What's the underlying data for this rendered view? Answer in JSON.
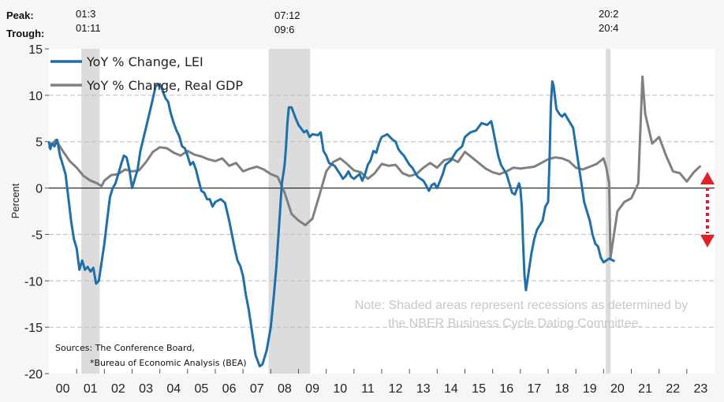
{
  "header": {
    "peak_label": "Peak:",
    "trough_label": "Trough:",
    "recession_dates": [
      {
        "peak": "01:3",
        "trough": "01:11"
      },
      {
        "peak": "07:12",
        "trough": "09:6"
      },
      {
        "peak": "20:2",
        "trough": "20:4"
      }
    ]
  },
  "chart_data": {
    "type": "line",
    "title": "",
    "xlabel": "",
    "ylabel": "Percent",
    "ylim": [
      -20,
      15
    ],
    "xlim": [
      2000,
      2024
    ],
    "yticks": [
      15,
      10,
      5,
      0,
      -5,
      -10,
      -15,
      -20
    ],
    "xtick_labels": [
      "00",
      "01",
      "02",
      "03",
      "04",
      "05",
      "06",
      "07",
      "08",
      "09",
      "10",
      "11",
      "12",
      "13",
      "14",
      "15",
      "16",
      "17",
      "18",
      "19",
      "20",
      "21",
      "22",
      "23"
    ],
    "grid": true,
    "legend_position": "top-left",
    "colors": {
      "lei": "#1f6fa8",
      "gdp": "#808080",
      "recession": "#dcdcdc",
      "arrow": "#e0202a"
    },
    "recessions": [
      {
        "start": 2001.17,
        "end": 2001.83
      },
      {
        "start": 2007.92,
        "end": 2009.42
      },
      {
        "start": 2020.08,
        "end": 2020.25
      }
    ],
    "series": [
      {
        "name": "YoY % Change, LEI",
        "points": [
          [
            2000.0,
            5.0
          ],
          [
            2000.05,
            4.2
          ],
          [
            2000.1,
            4.8
          ],
          [
            2000.2,
            4.5
          ],
          [
            2000.3,
            5.2
          ],
          [
            2000.4,
            3.5
          ],
          [
            2000.5,
            2.5
          ],
          [
            2000.6,
            1.5
          ],
          [
            2000.7,
            -1.0
          ],
          [
            2000.8,
            -3.5
          ],
          [
            2000.9,
            -5.5
          ],
          [
            2001.0,
            -6.5
          ],
          [
            2001.1,
            -8.8
          ],
          [
            2001.2,
            -7.8
          ],
          [
            2001.3,
            -8.8
          ],
          [
            2001.4,
            -8.5
          ],
          [
            2001.5,
            -9.0
          ],
          [
            2001.6,
            -8.6
          ],
          [
            2001.7,
            -10.3
          ],
          [
            2001.8,
            -10.0
          ],
          [
            2001.9,
            -8.0
          ],
          [
            2002.0,
            -6.0
          ],
          [
            2002.1,
            -3.5
          ],
          [
            2002.2,
            -1.0
          ],
          [
            2002.3,
            0.0
          ],
          [
            2002.4,
            0.5
          ],
          [
            2002.5,
            1.5
          ],
          [
            2002.6,
            2.5
          ],
          [
            2002.7,
            3.5
          ],
          [
            2002.8,
            3.3
          ],
          [
            2002.9,
            2.0
          ],
          [
            2003.0,
            0.0
          ],
          [
            2003.1,
            1.0
          ],
          [
            2003.2,
            2.0
          ],
          [
            2003.3,
            4.0
          ],
          [
            2003.5,
            6.5
          ],
          [
            2003.7,
            9.0
          ],
          [
            2003.85,
            11.0
          ],
          [
            2004.0,
            11.2
          ],
          [
            2004.1,
            10.5
          ],
          [
            2004.2,
            9.7
          ],
          [
            2004.3,
            9.3
          ],
          [
            2004.4,
            8.0
          ],
          [
            2004.5,
            7.0
          ],
          [
            2004.6,
            6.2
          ],
          [
            2004.7,
            5.6
          ],
          [
            2004.8,
            4.5
          ],
          [
            2004.9,
            4.3
          ],
          [
            2005.0,
            3.5
          ],
          [
            2005.1,
            2.5
          ],
          [
            2005.2,
            2.8
          ],
          [
            2005.3,
            2.0
          ],
          [
            2005.4,
            0.8
          ],
          [
            2005.5,
            -0.3
          ],
          [
            2005.6,
            -0.5
          ],
          [
            2005.7,
            -1.2
          ],
          [
            2005.8,
            -1.2
          ],
          [
            2005.9,
            -2.0
          ],
          [
            2006.0,
            -1.5
          ],
          [
            2006.2,
            -1.2
          ],
          [
            2006.35,
            -1.6
          ],
          [
            2006.5,
            -3.5
          ],
          [
            2006.6,
            -5.0
          ],
          [
            2006.7,
            -6.5
          ],
          [
            2006.8,
            -7.8
          ],
          [
            2006.9,
            -8.4
          ],
          [
            2007.0,
            -9.5
          ],
          [
            2007.1,
            -11.5
          ],
          [
            2007.2,
            -13.0
          ],
          [
            2007.3,
            -15.0
          ],
          [
            2007.45,
            -18.0
          ],
          [
            2007.6,
            -19.2
          ],
          [
            2007.7,
            -19.0
          ],
          [
            2007.85,
            -17.5
          ],
          [
            2008.0,
            -15.0
          ],
          [
            2008.1,
            -12.0
          ],
          [
            2008.2,
            -8.5
          ],
          [
            2008.3,
            -4.0
          ],
          [
            2008.4,
            0.5
          ],
          [
            2008.5,
            2.5
          ],
          [
            2008.55,
            4.5
          ],
          [
            2008.6,
            7.0
          ],
          [
            2008.65,
            8.7
          ],
          [
            2008.75,
            8.7
          ],
          [
            2008.9,
            7.5
          ],
          [
            2009.0,
            6.8
          ],
          [
            2009.2,
            6.0
          ],
          [
            2009.3,
            6.2
          ],
          [
            2009.4,
            5.5
          ],
          [
            2009.5,
            5.8
          ],
          [
            2009.7,
            5.7
          ],
          [
            2009.8,
            6.0
          ],
          [
            2009.9,
            4.0
          ],
          [
            2010.0,
            3.5
          ],
          [
            2010.1,
            2.7
          ],
          [
            2010.3,
            2.4
          ],
          [
            2010.5,
            1.5
          ],
          [
            2010.6,
            1.0
          ],
          [
            2010.7,
            1.3
          ],
          [
            2010.8,
            1.8
          ],
          [
            2010.9,
            1.2
          ],
          [
            2011.0,
            1.0
          ],
          [
            2011.2,
            1.5
          ],
          [
            2011.3,
            0.8
          ],
          [
            2011.4,
            1.5
          ],
          [
            2011.5,
            2.5
          ],
          [
            2011.6,
            3.0
          ],
          [
            2011.7,
            4.0
          ],
          [
            2011.8,
            3.8
          ],
          [
            2011.9,
            4.8
          ],
          [
            2012.0,
            5.5
          ],
          [
            2012.2,
            5.8
          ],
          [
            2012.4,
            5.2
          ],
          [
            2012.5,
            5.0
          ],
          [
            2012.6,
            4.2
          ],
          [
            2012.7,
            3.8
          ],
          [
            2012.8,
            3.5
          ],
          [
            2012.9,
            3.0
          ],
          [
            2013.0,
            2.5
          ],
          [
            2013.1,
            2.2
          ],
          [
            2013.2,
            1.7
          ],
          [
            2013.3,
            1.2
          ],
          [
            2013.4,
            1.0
          ],
          [
            2013.5,
            0.8
          ],
          [
            2013.6,
            0.3
          ],
          [
            2013.7,
            -0.3
          ],
          [
            2013.8,
            0.3
          ],
          [
            2013.9,
            0.5
          ],
          [
            2014.0,
            0.0
          ],
          [
            2014.2,
            1.5
          ],
          [
            2014.3,
            2.5
          ],
          [
            2014.5,
            3.0
          ],
          [
            2014.6,
            3.5
          ],
          [
            2014.7,
            4.0
          ],
          [
            2014.9,
            4.5
          ],
          [
            2015.0,
            5.5
          ],
          [
            2015.2,
            6.0
          ],
          [
            2015.4,
            6.2
          ],
          [
            2015.6,
            7.0
          ],
          [
            2015.8,
            6.8
          ],
          [
            2015.95,
            7.2
          ],
          [
            2016.0,
            6.5
          ],
          [
            2016.1,
            5.0
          ],
          [
            2016.2,
            3.5
          ],
          [
            2016.3,
            2.5
          ],
          [
            2016.5,
            1.5
          ],
          [
            2016.6,
            0.5
          ],
          [
            2016.7,
            -0.5
          ],
          [
            2016.8,
            -0.7
          ],
          [
            2016.95,
            0.5
          ],
          [
            2017.0,
            0.0
          ],
          [
            2017.05,
            -2.0
          ],
          [
            2017.1,
            -6.0
          ],
          [
            2017.15,
            -9.5
          ],
          [
            2017.2,
            -11.0
          ],
          [
            2017.3,
            -9.0
          ],
          [
            2017.4,
            -7.0
          ],
          [
            2017.5,
            -5.5
          ],
          [
            2017.6,
            -4.5
          ],
          [
            2017.7,
            -4.0
          ],
          [
            2017.8,
            -3.5
          ],
          [
            2017.9,
            -2.0
          ],
          [
            2018.0,
            -1.5
          ],
          [
            2018.05,
            3.0
          ],
          [
            2018.1,
            9.0
          ],
          [
            2018.15,
            11.5
          ],
          [
            2018.2,
            11.0
          ],
          [
            2018.3,
            8.5
          ],
          [
            2018.4,
            8.0
          ],
          [
            2018.5,
            7.7
          ],
          [
            2018.6,
            8.0
          ],
          [
            2018.7,
            7.5
          ],
          [
            2018.8,
            7.0
          ],
          [
            2018.9,
            6.5
          ],
          [
            2019.0,
            4.5
          ],
          [
            2019.1,
            2.5
          ],
          [
            2019.2,
            0.5
          ],
          [
            2019.3,
            -1.5
          ],
          [
            2019.4,
            -2.5
          ],
          [
            2019.5,
            -3.5
          ],
          [
            2019.6,
            -5.0
          ],
          [
            2019.7,
            -6.0
          ],
          [
            2019.8,
            -6.3
          ],
          [
            2019.9,
            -7.5
          ],
          [
            2020.0,
            -8.0
          ],
          [
            2020.2,
            -7.6
          ],
          [
            2020.4,
            -7.9
          ]
        ]
      },
      {
        "name": "YoY % Change, Real GDP",
        "points": [
          [
            2000.0,
            4.3
          ],
          [
            2000.25,
            5.2
          ],
          [
            2000.5,
            4.0
          ],
          [
            2000.75,
            2.9
          ],
          [
            2001.0,
            2.2
          ],
          [
            2001.25,
            1.3
          ],
          [
            2001.5,
            0.8
          ],
          [
            2001.75,
            0.5
          ],
          [
            2001.9,
            0.2
          ],
          [
            2002.0,
            0.8
          ],
          [
            2002.25,
            1.4
          ],
          [
            2002.5,
            1.5
          ],
          [
            2002.75,
            2.0
          ],
          [
            2003.0,
            1.8
          ],
          [
            2003.25,
            1.9
          ],
          [
            2003.5,
            2.8
          ],
          [
            2003.75,
            3.9
          ],
          [
            2004.0,
            4.4
          ],
          [
            2004.25,
            4.3
          ],
          [
            2004.5,
            3.8
          ],
          [
            2004.75,
            3.5
          ],
          [
            2005.0,
            4.0
          ],
          [
            2005.25,
            3.6
          ],
          [
            2005.5,
            3.4
          ],
          [
            2005.75,
            3.1
          ],
          [
            2006.0,
            2.9
          ],
          [
            2006.25,
            3.2
          ],
          [
            2006.5,
            2.4
          ],
          [
            2006.75,
            2.7
          ],
          [
            2007.0,
            1.8
          ],
          [
            2007.25,
            2.1
          ],
          [
            2007.5,
            2.3
          ],
          [
            2007.75,
            2.0
          ],
          [
            2008.0,
            1.5
          ],
          [
            2008.25,
            1.2
          ],
          [
            2008.5,
            -0.5
          ],
          [
            2008.75,
            -2.8
          ],
          [
            2009.0,
            -3.5
          ],
          [
            2009.25,
            -4.0
          ],
          [
            2009.5,
            -3.3
          ],
          [
            2009.75,
            -0.8
          ],
          [
            2010.0,
            1.8
          ],
          [
            2010.25,
            2.8
          ],
          [
            2010.5,
            3.2
          ],
          [
            2010.75,
            2.6
          ],
          [
            2011.0,
            1.9
          ],
          [
            2011.25,
            1.7
          ],
          [
            2011.5,
            1.0
          ],
          [
            2011.75,
            1.6
          ],
          [
            2012.0,
            2.6
          ],
          [
            2012.25,
            2.4
          ],
          [
            2012.5,
            2.5
          ],
          [
            2012.75,
            1.6
          ],
          [
            2013.0,
            1.3
          ],
          [
            2013.25,
            1.5
          ],
          [
            2013.5,
            2.2
          ],
          [
            2013.75,
            2.7
          ],
          [
            2014.0,
            2.2
          ],
          [
            2014.25,
            3.0
          ],
          [
            2014.5,
            3.2
          ],
          [
            2014.75,
            2.8
          ],
          [
            2015.0,
            3.9
          ],
          [
            2015.25,
            3.3
          ],
          [
            2015.5,
            2.7
          ],
          [
            2015.75,
            2.1
          ],
          [
            2016.0,
            1.7
          ],
          [
            2016.25,
            1.5
          ],
          [
            2016.5,
            1.8
          ],
          [
            2016.75,
            2.2
          ],
          [
            2017.0,
            2.1
          ],
          [
            2017.25,
            2.2
          ],
          [
            2017.5,
            2.3
          ],
          [
            2017.75,
            2.7
          ],
          [
            2018.0,
            3.1
          ],
          [
            2018.25,
            3.3
          ],
          [
            2018.5,
            3.2
          ],
          [
            2018.75,
            2.9
          ],
          [
            2019.0,
            2.2
          ],
          [
            2019.25,
            2.0
          ],
          [
            2019.5,
            2.3
          ],
          [
            2019.75,
            2.6
          ],
          [
            2020.0,
            3.2
          ],
          [
            2020.1,
            2.2
          ],
          [
            2020.2,
            0.5
          ],
          [
            2020.25,
            -7.5
          ],
          [
            2020.5,
            -2.5
          ],
          [
            2020.75,
            -1.5
          ],
          [
            2021.0,
            -1.1
          ],
          [
            2021.25,
            0.5
          ],
          [
            2021.4,
            12.0
          ],
          [
            2021.5,
            8.0
          ],
          [
            2021.75,
            4.8
          ],
          [
            2022.0,
            5.5
          ],
          [
            2022.25,
            3.5
          ],
          [
            2022.5,
            1.8
          ],
          [
            2022.75,
            1.6
          ],
          [
            2023.0,
            0.7
          ],
          [
            2023.25,
            1.7
          ],
          [
            2023.5,
            2.4
          ]
        ]
      }
    ],
    "annotations": [
      "Note: Shaded areas represent recessions as determined by",
      "the NBER Business Cycle Dating Committee."
    ],
    "sources": [
      "Sources: The Conference Board,",
      "*Bureau of Economic Analysis (BEA)"
    ]
  }
}
